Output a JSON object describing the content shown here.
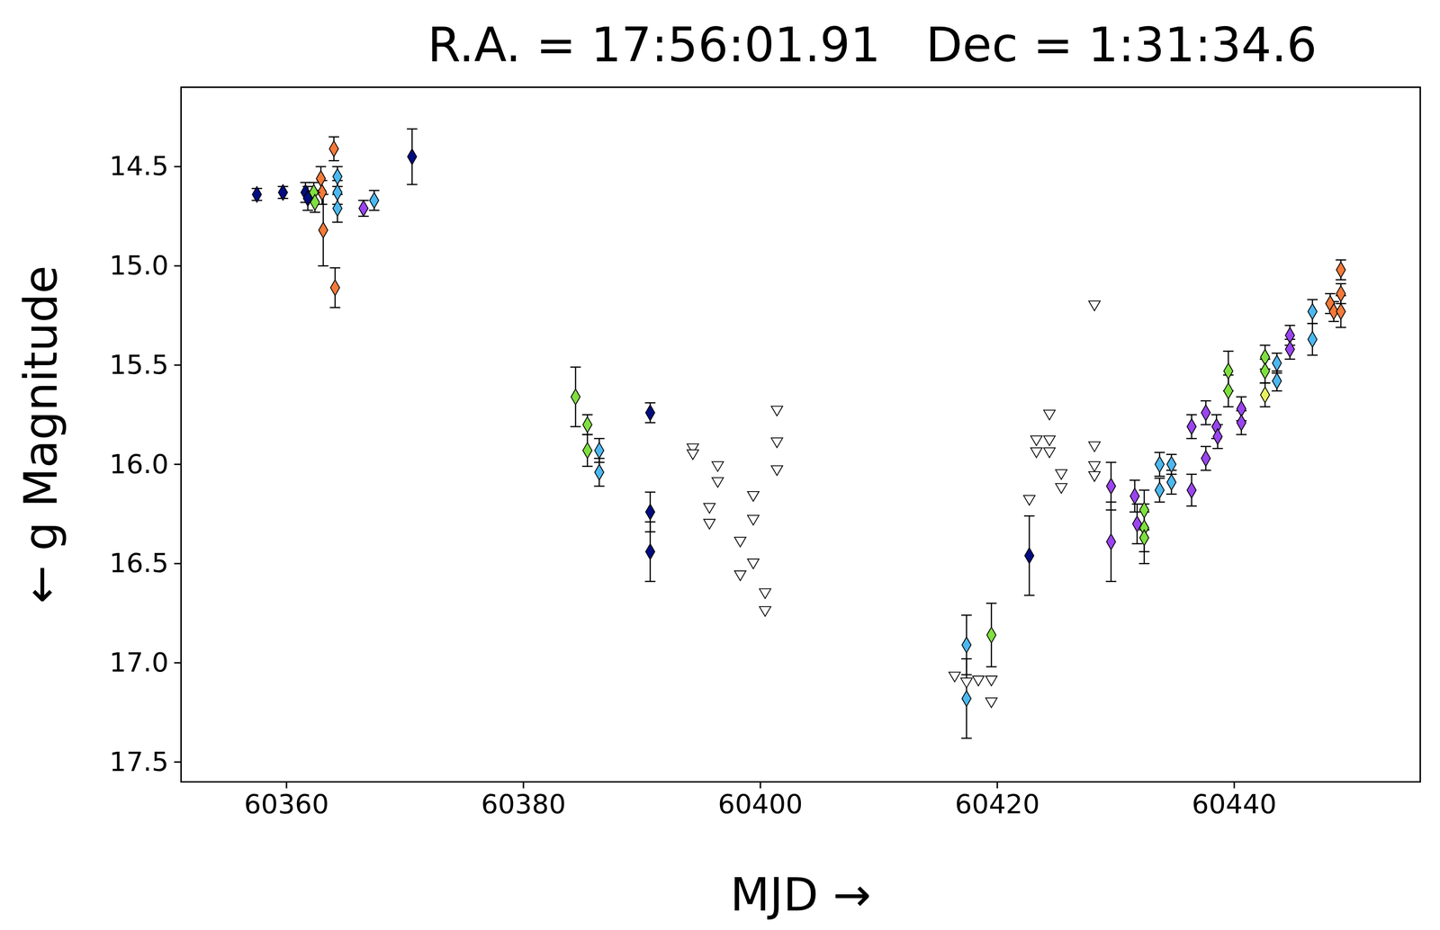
{
  "chart_data": {
    "type": "scatter",
    "title": "R.A. = 17:56:01.91   Dec = 1:31:34.6",
    "x_label": "MJD",
    "y_label": "g Magnitude",
    "xlim": [
      60351.1,
      60455.7
    ],
    "ylim": [
      17.6,
      14.1
    ],
    "xticks": [
      60360,
      60380,
      60400,
      60420,
      60440
    ],
    "yticks": [
      14.5,
      {
        "value": 15,
        "label": "15.0"
      },
      15.5,
      {
        "value": 16,
        "label": "16.0"
      },
      16.5,
      {
        "value": 17,
        "label": "17.0"
      },
      17.5
    ],
    "series": [
      {
        "color": "#000c80",
        "marker": "diamond",
        "x": [
          60357.5,
          60359.7,
          60361.6,
          60361.8,
          60370.6,
          60390.7,
          60390.7,
          60390.7,
          60422.7
        ],
        "values": [
          14.64,
          14.63,
          14.63,
          14.66,
          14.45,
          15.74,
          16.24,
          16.44,
          16.46
        ],
        "errors": [
          0.03,
          0.03,
          0.05,
          0.06,
          0.14,
          0.05,
          0.1,
          0.15,
          0.2
        ]
      },
      {
        "color": "#f47a3a",
        "marker": "diamond",
        "x": [
          60362.9,
          60363.0,
          60363.1,
          60364.0,
          60364.1,
          60448.1,
          60448.4,
          60449.0,
          60449.0,
          60449.0
        ],
        "values": [
          14.56,
          14.63,
          14.82,
          14.41,
          15.11,
          15.19,
          15.23,
          15.02,
          15.14,
          15.23
        ],
        "errors": [
          0.06,
          0.06,
          0.18,
          0.06,
          0.1,
          0.05,
          0.05,
          0.05,
          0.05,
          0.08
        ]
      },
      {
        "color": "#7fe040",
        "marker": "diamond",
        "x": [
          60362.3,
          60362.4,
          60384.4,
          60385.4,
          60385.4,
          60419.5,
          60432.4,
          60432.4,
          60432.4,
          60439.5,
          60439.5,
          60442.6,
          60442.6
        ],
        "values": [
          14.63,
          14.68,
          15.66,
          15.8,
          15.93,
          16.86,
          16.23,
          16.32,
          16.37,
          15.53,
          15.63,
          15.46,
          15.53
        ],
        "errors": [
          0.05,
          0.05,
          0.15,
          0.05,
          0.08,
          0.16,
          0.1,
          0.12,
          0.13,
          0.1,
          0.08,
          0.06,
          0.06
        ]
      },
      {
        "color": "#e8f060",
        "marker": "diamond",
        "x": [
          60442.6
        ],
        "values": [
          15.65
        ],
        "errors": [
          0.06
        ]
      },
      {
        "color": "#4cb8f0",
        "marker": "diamond",
        "x": [
          60364.3,
          60364.3,
          60364.3,
          60367.4,
          60386.4,
          60386.4,
          60417.4,
          60417.4,
          60433.7,
          60433.7,
          60434.7,
          60434.7,
          60443.6,
          60443.6,
          60446.6,
          60446.6
        ],
        "values": [
          14.55,
          14.63,
          14.71,
          14.67,
          15.93,
          16.04,
          16.91,
          17.18,
          16.0,
          16.13,
          16.0,
          16.09,
          15.49,
          15.58,
          15.23,
          15.37
        ],
        "errors": [
          0.05,
          0.06,
          0.07,
          0.05,
          0.06,
          0.07,
          0.15,
          0.2,
          0.06,
          0.06,
          0.05,
          0.06,
          0.05,
          0.05,
          0.06,
          0.08
        ]
      },
      {
        "color": "#9a44f0",
        "marker": "diamond",
        "x": [
          60366.5,
          60429.6,
          60429.6,
          60431.6,
          60431.8,
          60436.4,
          60436.4,
          60437.6,
          60437.6,
          60438.5,
          60438.6,
          60440.6,
          60440.6,
          60444.7,
          60444.7
        ],
        "values": [
          14.71,
          16.11,
          16.39,
          16.16,
          16.3,
          15.81,
          16.13,
          15.74,
          15.97,
          15.81,
          15.86,
          15.72,
          15.79,
          15.35,
          15.42
        ],
        "errors": [
          0.04,
          0.12,
          0.2,
          0.08,
          0.1,
          0.06,
          0.08,
          0.06,
          0.06,
          0.06,
          0.06,
          0.06,
          0.06,
          0.05,
          0.05
        ]
      },
      {
        "color": "#ffffff",
        "marker": "triangle-down",
        "x": [
          60394.3,
          60394.3,
          60396.4,
          60396.4,
          60395.7,
          60395.7,
          60398.3,
          60398.3,
          60399.4,
          60399.4,
          60399.4,
          60400.4,
          60400.4,
          60401.4,
          60401.4,
          60401.4,
          60416.4,
          60417.4,
          60418.4,
          60419.5,
          60419.5,
          60422.7,
          60423.3,
          60423.3,
          60424.4,
          60424.4,
          60424.4,
          60425.4,
          60425.4,
          60428.2,
          60428.2,
          60428.2,
          60428.2
        ],
        "values": [
          15.92,
          15.95,
          16.01,
          16.09,
          16.22,
          16.3,
          16.39,
          16.56,
          16.16,
          16.28,
          16.5,
          16.65,
          16.74,
          15.73,
          15.89,
          16.03,
          17.07,
          17.1,
          17.09,
          17.09,
          17.2,
          16.18,
          15.88,
          15.94,
          15.75,
          15.88,
          15.94,
          16.05,
          16.12,
          15.2,
          15.91,
          16.01,
          16.06
        ]
      }
    ]
  }
}
